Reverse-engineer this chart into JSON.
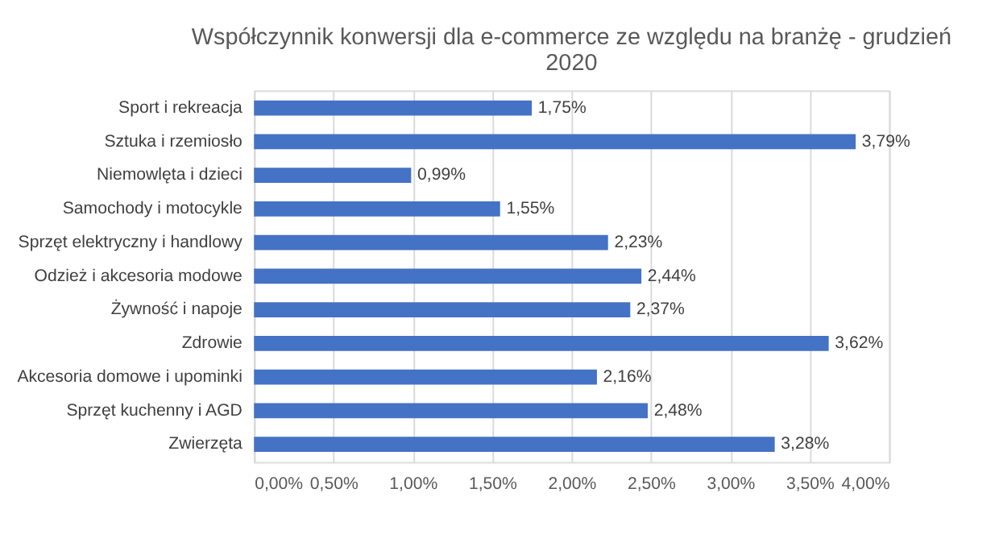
{
  "chart_data": {
    "type": "bar",
    "orientation": "horizontal",
    "title": "Współczynnik konwersji dla e-commerce ze względu na branżę - grudzień 2020",
    "categories": [
      "Sport i rekreacja",
      "Sztuka i rzemiosło",
      "Niemowlęta i dzieci",
      "Samochody i motocykle",
      "Sprzęt elektryczny i handlowy",
      "Odzież i akcesoria modowe",
      "Żywność i napoje",
      "Zdrowie",
      "Akcesoria domowe i upominki",
      "Sprzęt kuchenny i AGD",
      "Zwierzęta"
    ],
    "values": [
      1.75,
      3.79,
      0.99,
      1.55,
      2.23,
      2.44,
      2.37,
      3.62,
      2.16,
      2.48,
      3.28
    ],
    "value_labels": [
      "1,75%",
      "3,79%",
      "0,99%",
      "1,55%",
      "2,23%",
      "2,44%",
      "2,37%",
      "3,62%",
      "2,16%",
      "2,48%",
      "3,28%"
    ],
    "color": "#4472c4",
    "xlim": [
      0,
      4
    ],
    "xticks": [
      {
        "value": 0,
        "label": "0,00%"
      },
      {
        "value": 0.5,
        "label": "0,50%"
      },
      {
        "value": 1,
        "label": "1,00%"
      },
      {
        "value": 1.5,
        "label": "1,50%"
      },
      {
        "value": 2,
        "label": "2,00%"
      },
      {
        "value": 2.5,
        "label": "2,50%"
      },
      {
        "value": 3,
        "label": "3,00%"
      },
      {
        "value": 3.5,
        "label": "3,50%"
      },
      {
        "value": 4,
        "label": "4,00%"
      }
    ],
    "grid": "x"
  }
}
